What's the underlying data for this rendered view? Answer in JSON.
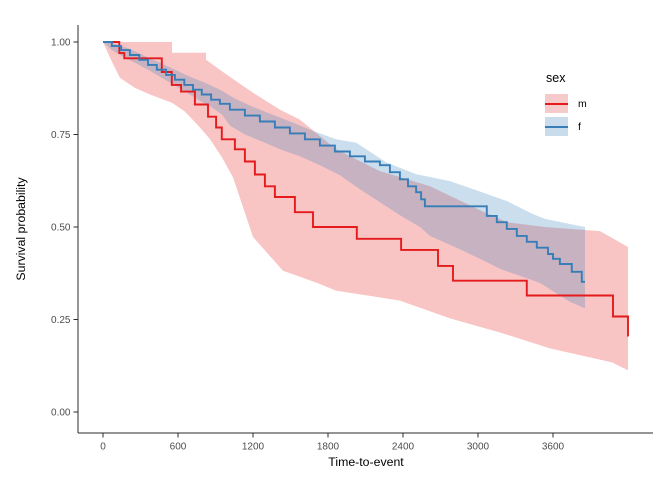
{
  "chart_data": {
    "type": "line",
    "subtype": "kaplan-meier-survival-steps-with-confidence-bands",
    "title": "",
    "xlabel": "Time-to-event",
    "ylabel": "Survival probability",
    "grid": false,
    "background": "#ffffff",
    "axis_color": "#2b2b2b",
    "tick_label_color": "#4d4d4d",
    "xlim": [
      0,
      4400
    ],
    "ylim": [
      0,
      1
    ],
    "x_ticks": {
      "values": [
        0,
        600,
        1200,
        1800,
        2400,
        3000,
        3600
      ],
      "labels": [
        "0",
        "600",
        "1200",
        "1800",
        "2400",
        "3000",
        "3600"
      ]
    },
    "y_ticks": {
      "values": [
        0,
        0.25,
        0.5,
        0.75,
        1
      ],
      "labels": [
        "0.00",
        "0.25",
        "0.50",
        "0.75",
        "1.00"
      ]
    },
    "legend": {
      "title": "sex",
      "position": "right",
      "entries": [
        {
          "label": "m",
          "line_color": "#E41A1C",
          "fill_color": "#F6C9CB"
        },
        {
          "label": "f",
          "line_color": "#377EB8",
          "fill_color": "#C8DCEC"
        }
      ]
    },
    "series": [
      {
        "name": "m",
        "color": "#E41A1C",
        "band_opacity": 0.26,
        "steps": [
          [
            0,
            1.0
          ],
          [
            130,
            0.97
          ],
          [
            170,
            0.956
          ],
          [
            470,
            0.919
          ],
          [
            550,
            0.884
          ],
          [
            625,
            0.866
          ],
          [
            735,
            0.831
          ],
          [
            840,
            0.798
          ],
          [
            905,
            0.769
          ],
          [
            950,
            0.737
          ],
          [
            1055,
            0.71
          ],
          [
            1135,
            0.677
          ],
          [
            1215,
            0.642
          ],
          [
            1295,
            0.61
          ],
          [
            1375,
            0.581
          ],
          [
            1535,
            0.54
          ],
          [
            1680,
            0.5
          ],
          [
            2030,
            0.468
          ],
          [
            2385,
            0.438
          ],
          [
            2680,
            0.395
          ],
          [
            2800,
            0.355
          ],
          [
            3390,
            0.315
          ],
          [
            4080,
            0.258
          ],
          [
            4200,
            0.204
          ]
        ],
        "band_upper": [
          [
            0,
            1.0
          ],
          [
            552,
            1.0
          ],
          [
            552,
            0.971
          ],
          [
            824,
            0.971
          ],
          [
            824,
            0.952
          ],
          [
            992,
            0.911
          ],
          [
            1200,
            0.863
          ],
          [
            1416,
            0.817
          ],
          [
            1576,
            0.79
          ],
          [
            1864,
            0.71
          ],
          [
            2216,
            0.651
          ],
          [
            2616,
            0.61
          ],
          [
            3032,
            0.543
          ],
          [
            3232,
            0.513
          ],
          [
            3536,
            0.5
          ],
          [
            3976,
            0.489
          ],
          [
            4200,
            0.446
          ]
        ],
        "band_lower": [
          [
            0,
            1.0
          ],
          [
            72,
            0.946
          ],
          [
            136,
            0.903
          ],
          [
            256,
            0.876
          ],
          [
            376,
            0.858
          ],
          [
            552,
            0.836
          ],
          [
            656,
            0.812
          ],
          [
            776,
            0.769
          ],
          [
            856,
            0.737
          ],
          [
            952,
            0.688
          ],
          [
            1040,
            0.634
          ],
          [
            1112,
            0.562
          ],
          [
            1200,
            0.473
          ],
          [
            1440,
            0.382
          ],
          [
            1712,
            0.349
          ],
          [
            1864,
            0.328
          ],
          [
            2376,
            0.301
          ],
          [
            2776,
            0.253
          ],
          [
            3176,
            0.215
          ],
          [
            3576,
            0.172
          ],
          [
            4072,
            0.134
          ],
          [
            4200,
            0.113
          ]
        ]
      },
      {
        "name": "f",
        "color": "#377EB8",
        "band_opacity": 0.26,
        "steps": [
          [
            0,
            1.0
          ],
          [
            70,
            0.989
          ],
          [
            145,
            0.978
          ],
          [
            215,
            0.965
          ],
          [
            290,
            0.952
          ],
          [
            360,
            0.938
          ],
          [
            430,
            0.925
          ],
          [
            505,
            0.911
          ],
          [
            575,
            0.898
          ],
          [
            650,
            0.884
          ],
          [
            720,
            0.871
          ],
          [
            790,
            0.858
          ],
          [
            865,
            0.844
          ],
          [
            935,
            0.833
          ],
          [
            1015,
            0.817
          ],
          [
            1135,
            0.801
          ],
          [
            1255,
            0.785
          ],
          [
            1375,
            0.769
          ],
          [
            1495,
            0.753
          ],
          [
            1615,
            0.737
          ],
          [
            1735,
            0.72
          ],
          [
            1855,
            0.704
          ],
          [
            1975,
            0.691
          ],
          [
            2095,
            0.677
          ],
          [
            2215,
            0.667
          ],
          [
            2295,
            0.648
          ],
          [
            2375,
            0.629
          ],
          [
            2440,
            0.61
          ],
          [
            2505,
            0.594
          ],
          [
            2545,
            0.575
          ],
          [
            2575,
            0.556
          ],
          [
            3070,
            0.53
          ],
          [
            3150,
            0.513
          ],
          [
            3230,
            0.495
          ],
          [
            3310,
            0.476
          ],
          [
            3390,
            0.46
          ],
          [
            3470,
            0.444
          ],
          [
            3560,
            0.427
          ],
          [
            3600,
            0.414
          ],
          [
            3655,
            0.4
          ],
          [
            3750,
            0.379
          ],
          [
            3830,
            0.352
          ],
          [
            3856,
            0.352
          ]
        ],
        "band_upper": [
          [
            0,
            1.0
          ],
          [
            96,
            0.995
          ],
          [
            216,
            0.981
          ],
          [
            336,
            0.962
          ],
          [
            456,
            0.944
          ],
          [
            576,
            0.925
          ],
          [
            696,
            0.906
          ],
          [
            816,
            0.89
          ],
          [
            936,
            0.871
          ],
          [
            1056,
            0.847
          ],
          [
            1176,
            0.828
          ],
          [
            1336,
            0.806
          ],
          [
            1496,
            0.785
          ],
          [
            1656,
            0.763
          ],
          [
            1864,
            0.737
          ],
          [
            2024,
            0.728
          ],
          [
            2264,
            0.675
          ],
          [
            2504,
            0.643
          ],
          [
            2776,
            0.624
          ],
          [
            3032,
            0.594
          ],
          [
            3232,
            0.57
          ],
          [
            3440,
            0.535
          ],
          [
            3536,
            0.522
          ],
          [
            3736,
            0.508
          ],
          [
            3856,
            0.5
          ]
        ],
        "band_lower": [
          [
            0,
            1.0
          ],
          [
            72,
            0.978
          ],
          [
            152,
            0.962
          ],
          [
            256,
            0.944
          ],
          [
            360,
            0.925
          ],
          [
            456,
            0.906
          ],
          [
            552,
            0.887
          ],
          [
            656,
            0.866
          ],
          [
            776,
            0.841
          ],
          [
            872,
            0.823
          ],
          [
            952,
            0.804
          ],
          [
            1016,
            0.774
          ],
          [
            1136,
            0.75
          ],
          [
            1272,
            0.731
          ],
          [
            1416,
            0.71
          ],
          [
            1576,
            0.691
          ],
          [
            1736,
            0.667
          ],
          [
            1896,
            0.64
          ],
          [
            2056,
            0.602
          ],
          [
            2216,
            0.567
          ],
          [
            2376,
            0.532
          ],
          [
            2536,
            0.5
          ],
          [
            2616,
            0.476
          ],
          [
            2816,
            0.446
          ],
          [
            3016,
            0.414
          ],
          [
            3176,
            0.387
          ],
          [
            3336,
            0.368
          ],
          [
            3496,
            0.349
          ],
          [
            3632,
            0.32
          ],
          [
            3736,
            0.298
          ],
          [
            3856,
            0.28
          ]
        ]
      }
    ]
  }
}
